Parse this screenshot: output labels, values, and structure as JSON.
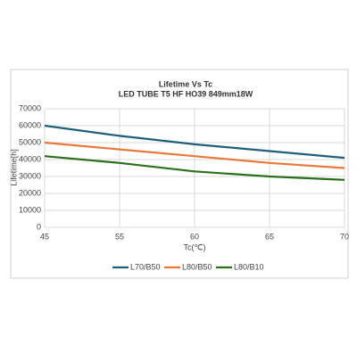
{
  "chart_data": {
    "type": "line",
    "title": "Lifetime Vs Tc",
    "subtitle": "LED TUBE T5 HF HO39  849mm18W",
    "x_label": "Tc(℃)",
    "y_label": "Lifetime[h]",
    "categories": [
      "45",
      "55",
      "60",
      "65",
      "70"
    ],
    "series": [
      {
        "name": "L70/B50",
        "color": "#1f5f7a",
        "values": [
          60000,
          54000,
          49000,
          45000,
          41000
        ]
      },
      {
        "name": "L80/B50",
        "color": "#e8773a",
        "values": [
          50000,
          46000,
          42000,
          38000,
          35000
        ]
      },
      {
        "name": "L80/B10",
        "color": "#2a6e1e",
        "values": [
          42000,
          38000,
          33000,
          30000,
          28000
        ]
      }
    ],
    "ylim": [
      0,
      70000
    ],
    "yticks": [
      0,
      10000,
      20000,
      30000,
      40000,
      50000,
      60000,
      70000
    ],
    "grid": true,
    "legend": "bottom"
  }
}
